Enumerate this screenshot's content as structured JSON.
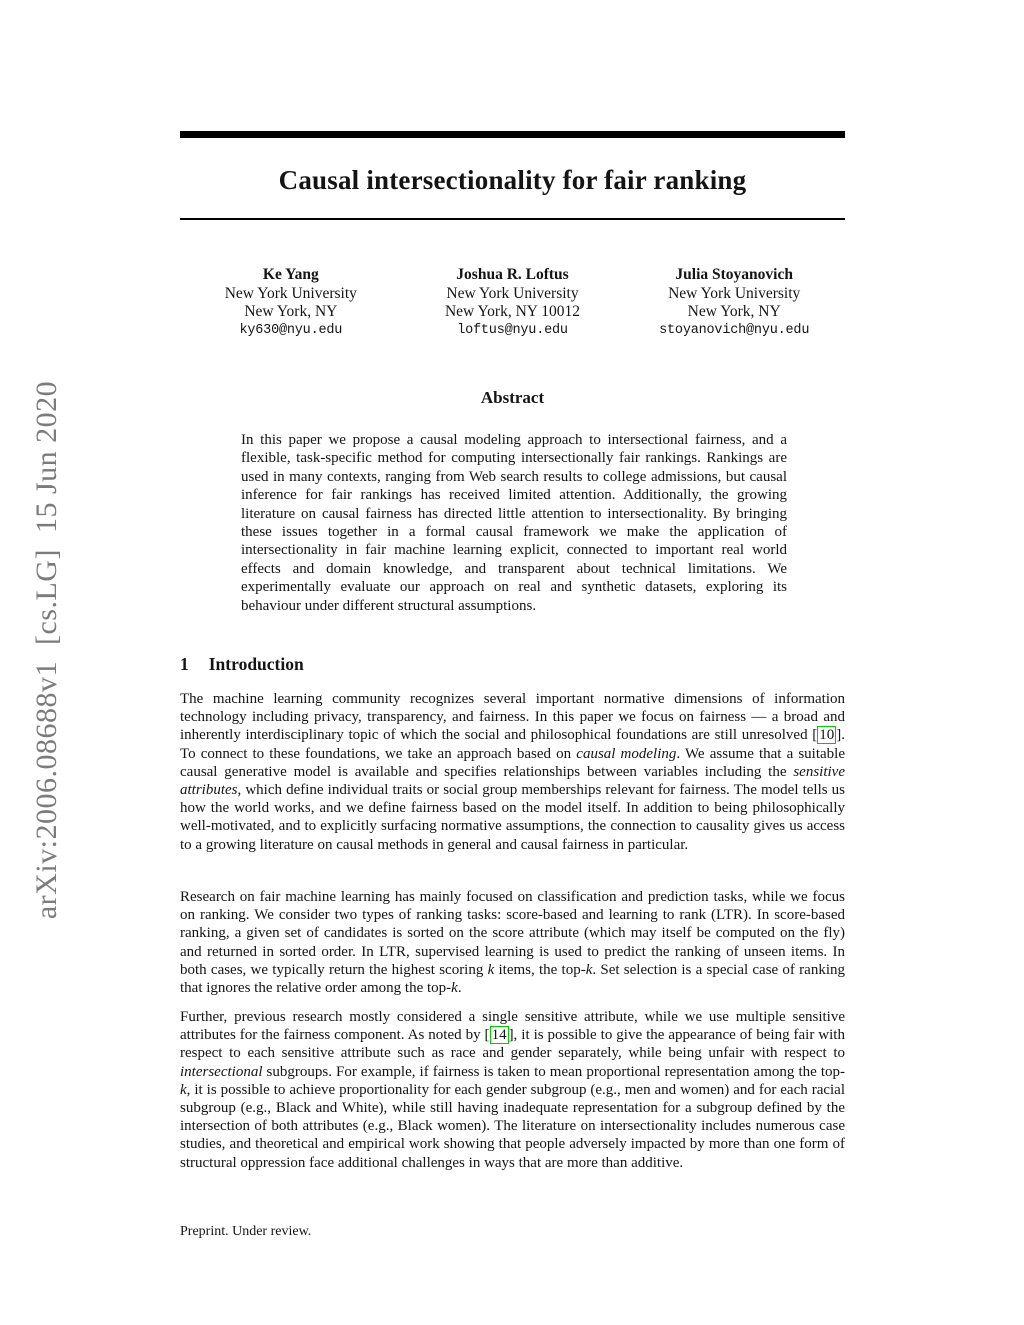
{
  "watermark": "arXiv:2006.08688v1  [cs.LG]  15 Jun 2020",
  "title": "Causal intersectionality for fair ranking",
  "authors": [
    {
      "name": "Ke Yang",
      "affiliation": "New York University",
      "city": "New York, NY",
      "email": "ky630@nyu.edu"
    },
    {
      "name": "Joshua R. Loftus",
      "affiliation": "New York University",
      "city": "New York, NY 10012",
      "email": "loftus@nyu.edu"
    },
    {
      "name": "Julia Stoyanovich",
      "affiliation": "New York University",
      "city": "New York, NY",
      "email": "stoyanovich@nyu.edu"
    }
  ],
  "abstract": {
    "heading": "Abstract",
    "text": "In this paper we propose a causal modeling approach to intersectional fairness, and a flexible, task-specific method for computing intersectionally fair rankings. Rankings are used in many contexts, ranging from Web search results to college admissions, but causal inference for fair rankings has received limited attention. Additionally, the growing literature on causal fairness has directed little attention to intersectionality. By bringing these issues together in a formal causal framework we make the application of intersectionality in fair machine learning explicit, connected to important real world effects and domain knowledge, and transparent about technical limitations. We experimentally evaluate our approach on real and synthetic datasets, exploring its behaviour under different structural assumptions."
  },
  "section1": {
    "number": "1",
    "title": "Introduction"
  },
  "p1": {
    "s0": "The machine learning community recognizes several important normative dimensions of information technology including privacy, transparency, and fairness. In this paper we focus on fairness — a broad and inherently interdisciplinary topic of which the social and philosophical foundations are still unresolved [",
    "cite": "10",
    "s1": "]. To connect to these foundations, we take an approach based on ",
    "em1": "causal modeling",
    "s2": ". We assume that a suitable causal generative model is available and specifies relationships between variables including the ",
    "em2": "sensitive attributes",
    "s3": ", which define individual traits or social group memberships relevant for fairness. The model tells us how the world works, and we define fairness based on the model itself. In addition to being philosophically well-motivated, and to explicitly surfacing normative assumptions, the connection to causality gives us access to a growing literature on causal methods in general and causal fairness in particular."
  },
  "p2": {
    "s0": "Research on fair machine learning has mainly focused on classification and prediction tasks, while we focus on ranking. We consider two types of ranking tasks: score-based and learning to rank (LTR). In score-based ranking, a given set of candidates is sorted on the score attribute (which may itself be computed on the fly) and returned in sorted order. In LTR, supervised learning is used to predict the ranking of unseen items. In both cases, we typically return the highest scoring ",
    "k1": "k",
    "s1": " items, the top-",
    "k2": "k",
    "s2": ". Set selection is a special case of ranking that ignores the relative order among the top-",
    "k3": "k",
    "s3": "."
  },
  "p3": {
    "s0": "Further, previous research mostly considered a single sensitive attribute, while we use multiple sensitive attributes for the fairness component. As noted by [",
    "cite": "14",
    "s1": "], it is possible to give the appearance of being fair with respect to each sensitive attribute such as race and gender separately, while being unfair with respect to ",
    "em1": "intersectional",
    "s2": " subgroups. For example, if fairness is taken to mean proportional representation among the top-",
    "k1": "k",
    "s3": ", it is possible to achieve proportionality for each gender subgroup (e.g., men and women) and for each racial subgroup (e.g., Black and White), while still having inadequate representation for a subgroup defined by the intersection of both attributes (e.g., Black women). The literature on intersectionality includes numerous case studies, and theoretical and empirical work showing that people adversely impacted by more than one form of structural oppression face additional challenges in ways that are more than additive."
  },
  "footer": "Preprint. Under review.",
  "colors": {
    "citation_border_green": "#00cc00",
    "watermark_gray": "#7b7b7b",
    "rule_black": "#000000"
  }
}
